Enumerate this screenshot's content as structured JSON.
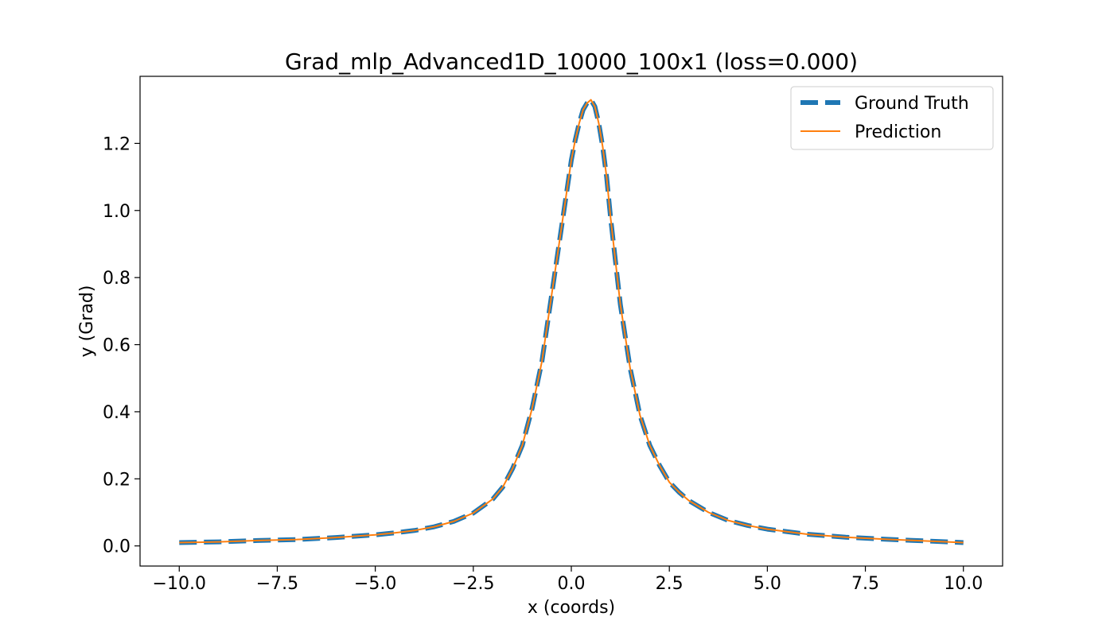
{
  "chart_data": {
    "type": "line",
    "title": "Grad_mlp_Advanced1D_10000_100x1 (loss=0.000)",
    "xlabel": "x (coords)",
    "ylabel": "y (Grad)",
    "xlim": [
      -11.0,
      11.0
    ],
    "ylim": [
      -0.06,
      1.4
    ],
    "xticks": [
      -10.0,
      -7.5,
      -5.0,
      -2.5,
      0.0,
      2.5,
      5.0,
      7.5,
      10.0
    ],
    "xtick_labels": [
      "−10.0",
      "−7.5",
      "−5.0",
      "−2.5",
      "0.0",
      "2.5",
      "5.0",
      "7.5",
      "10.0"
    ],
    "yticks": [
      0.0,
      0.2,
      0.4,
      0.6,
      0.8,
      1.0,
      1.2
    ],
    "ytick_labels": [
      "0.0",
      "0.2",
      "0.4",
      "0.6",
      "0.8",
      "1.0",
      "1.2"
    ],
    "grid": false,
    "legend_position": "top-right",
    "series": [
      {
        "name": "Ground Truth",
        "style": "dashed",
        "color": "#1f77b4",
        "x": [
          -10.0,
          -9.0,
          -8.0,
          -7.0,
          -6.0,
          -5.0,
          -4.5,
          -4.0,
          -3.5,
          -3.0,
          -2.5,
          -2.0,
          -1.75,
          -1.5,
          -1.25,
          -1.0,
          -0.75,
          -0.5,
          -0.25,
          0.0,
          0.1,
          0.2,
          0.3,
          0.4,
          0.5,
          0.6,
          0.7,
          0.8,
          0.9,
          1.0,
          1.25,
          1.5,
          1.75,
          2.0,
          2.25,
          2.5,
          2.75,
          3.0,
          3.5,
          4.0,
          4.5,
          5.0,
          6.0,
          7.0,
          8.0,
          9.0,
          10.0
        ],
        "values": [
          0.01,
          0.012,
          0.016,
          0.019,
          0.025,
          0.033,
          0.039,
          0.046,
          0.057,
          0.073,
          0.098,
          0.14,
          0.175,
          0.23,
          0.3,
          0.41,
          0.55,
          0.75,
          0.95,
          1.15,
          1.21,
          1.26,
          1.3,
          1.32,
          1.33,
          1.31,
          1.26,
          1.19,
          1.1,
          0.98,
          0.72,
          0.53,
          0.39,
          0.3,
          0.24,
          0.19,
          0.16,
          0.135,
          0.1,
          0.076,
          0.061,
          0.05,
          0.035,
          0.026,
          0.02,
          0.015,
          0.01
        ]
      },
      {
        "name": "Prediction",
        "style": "solid",
        "color": "#ff7f0e",
        "x": [
          -10.0,
          -9.0,
          -8.0,
          -7.0,
          -6.0,
          -5.0,
          -4.5,
          -4.0,
          -3.5,
          -3.0,
          -2.5,
          -2.0,
          -1.75,
          -1.5,
          -1.25,
          -1.0,
          -0.75,
          -0.5,
          -0.25,
          0.0,
          0.1,
          0.2,
          0.3,
          0.4,
          0.5,
          0.6,
          0.7,
          0.8,
          0.9,
          1.0,
          1.25,
          1.5,
          1.75,
          2.0,
          2.25,
          2.5,
          2.75,
          3.0,
          3.5,
          4.0,
          4.5,
          5.0,
          6.0,
          7.0,
          8.0,
          9.0,
          10.0
        ],
        "values": [
          0.01,
          0.012,
          0.016,
          0.019,
          0.025,
          0.033,
          0.039,
          0.046,
          0.057,
          0.073,
          0.098,
          0.14,
          0.175,
          0.23,
          0.3,
          0.41,
          0.55,
          0.75,
          0.95,
          1.15,
          1.21,
          1.26,
          1.3,
          1.32,
          1.33,
          1.31,
          1.26,
          1.19,
          1.1,
          0.98,
          0.72,
          0.53,
          0.39,
          0.3,
          0.24,
          0.19,
          0.16,
          0.135,
          0.1,
          0.076,
          0.061,
          0.05,
          0.035,
          0.026,
          0.02,
          0.015,
          0.01
        ]
      }
    ]
  }
}
